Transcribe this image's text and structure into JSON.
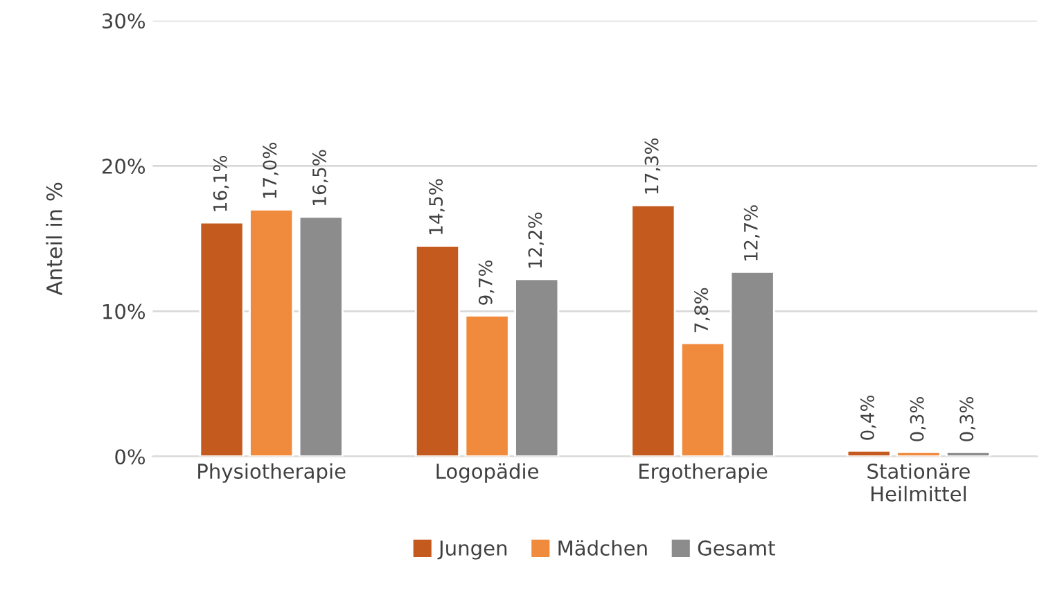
{
  "chart_data": {
    "type": "bar",
    "ylabel": "Anteil in %",
    "categories": [
      "Physiotherapie",
      "Logopädie",
      "Ergotherapie",
      "Stationäre\nHeilmittel"
    ],
    "series": [
      {
        "name": "Jungen",
        "color": "#c55a1e",
        "values": [
          16.1,
          14.5,
          17.3,
          0.4
        ],
        "value_labels": [
          "16,1%",
          "14,5%",
          "17,3%",
          "0,4%"
        ]
      },
      {
        "name": "Mädchen",
        "color": "#f08a3c",
        "values": [
          17.0,
          9.7,
          7.8,
          0.3
        ],
        "value_labels": [
          "17,0%",
          "9,7%",
          "7,8%",
          "0,3%"
        ]
      },
      {
        "name": "Gesamt",
        "color": "#8c8c8c",
        "values": [
          16.5,
          12.2,
          12.7,
          0.3
        ],
        "value_labels": [
          "16,5%",
          "12,2%",
          "12,7%",
          "0,3%"
        ]
      }
    ],
    "ylim": [
      0,
      30
    ],
    "yticks": [
      {
        "value": 0,
        "label": "0%"
      },
      {
        "value": 10,
        "label": "10%"
      },
      {
        "value": 20,
        "label": "20%"
      },
      {
        "value": 30,
        "label": "30%"
      }
    ],
    "grid": "y",
    "legend": "bottom"
  }
}
